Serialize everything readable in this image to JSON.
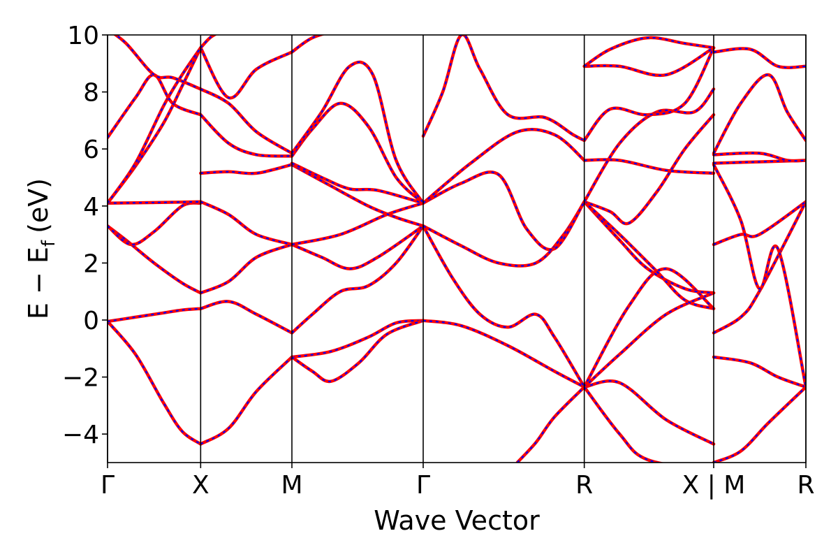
{
  "chart_data": {
    "type": "line",
    "title": "",
    "xlabel": "Wave Vector",
    "ylabel": "E − E",
    "ylabel_subscript": "f",
    "ylabel_unit": "(eV)",
    "ylim": [
      -5,
      10
    ],
    "yticks": [
      -4,
      -2,
      0,
      2,
      4,
      6,
      8,
      10
    ],
    "ytick_labels": [
      "−4",
      "−2",
      "0",
      "2",
      "4",
      "6",
      "8",
      "10"
    ],
    "xlim": [
      0,
      7.5
    ],
    "kpoints": [
      {
        "x": 0.0,
        "label": "Γ"
      },
      {
        "x": 1.0,
        "label": "X"
      },
      {
        "x": 1.98,
        "label": "M"
      },
      {
        "x": 3.39,
        "label": "Γ"
      },
      {
        "x": 5.12,
        "label": "R"
      },
      {
        "x": 6.51,
        "label": "X | M"
      },
      {
        "x": 7.5,
        "label": "R"
      }
    ],
    "segment_breaks": [
      6.51
    ],
    "grid": false,
    "line_styles": {
      "red": "#ff0000",
      "blue": "#0000ff",
      "blue_style": "dashed overlay on red"
    },
    "bands": [
      {
        "segment": 0,
        "x": [
          0.0,
          0.3,
          0.6,
          0.8,
          1.0
        ],
        "y": [
          -0.05,
          -1.2,
          -2.9,
          -3.9,
          -4.35
        ]
      },
      {
        "segment": 0,
        "x": [
          0.0,
          0.3,
          0.6,
          0.8,
          1.0
        ],
        "y": [
          -0.05,
          0.1,
          0.25,
          0.35,
          0.4
        ]
      },
      {
        "segment": 0,
        "x": [
          0.0,
          0.2,
          0.5,
          0.8,
          1.0
        ],
        "y": [
          3.3,
          2.8,
          2.0,
          1.3,
          0.95
        ]
      },
      {
        "segment": 0,
        "x": [
          0.0,
          0.25,
          0.5,
          0.8,
          1.0
        ],
        "y": [
          3.3,
          2.65,
          3.1,
          4.0,
          4.1
        ]
      },
      {
        "segment": 0,
        "x": [
          0.0,
          0.5,
          1.0
        ],
        "y": [
          4.1,
          4.12,
          4.15
        ]
      },
      {
        "segment": 0,
        "x": [
          0.0,
          0.3,
          0.6,
          0.8,
          1.0
        ],
        "y": [
          4.1,
          5.4,
          6.9,
          8.2,
          9.55
        ]
      },
      {
        "segment": 0,
        "x": [
          0.0,
          0.3,
          0.6,
          0.8,
          1.0
        ],
        "y": [
          4.1,
          5.5,
          7.5,
          8.6,
          9.55
        ]
      },
      {
        "segment": 0,
        "x": [
          0.0,
          0.3,
          0.5,
          0.7,
          1.0
        ],
        "y": [
          6.4,
          7.8,
          8.6,
          7.6,
          7.2
        ]
      },
      {
        "segment": 0,
        "x": [
          0.0,
          0.2,
          0.5,
          0.7,
          1.0
        ],
        "y": [
          10.2,
          9.7,
          8.6,
          8.5,
          8.1
        ]
      },
      {
        "segment": 0,
        "x": [
          1.0,
          1.3,
          1.6,
          1.98
        ],
        "y": [
          -4.35,
          -3.8,
          -2.5,
          -1.3
        ]
      },
      {
        "segment": 0,
        "x": [
          1.0,
          1.3,
          1.6,
          1.98
        ],
        "y": [
          0.4,
          0.65,
          0.2,
          -0.45
        ]
      },
      {
        "segment": 0,
        "x": [
          1.0,
          1.3,
          1.6,
          1.98
        ],
        "y": [
          0.95,
          1.35,
          2.2,
          2.65
        ]
      },
      {
        "segment": 0,
        "x": [
          1.0,
          1.3,
          1.6,
          1.98
        ],
        "y": [
          4.15,
          3.7,
          3.0,
          2.65
        ]
      },
      {
        "segment": 0,
        "x": [
          1.0,
          1.3,
          1.6,
          1.98
        ],
        "y": [
          5.15,
          5.2,
          5.15,
          5.45
        ]
      },
      {
        "segment": 0,
        "x": [
          1.0,
          1.3,
          1.6,
          1.98
        ],
        "y": [
          7.2,
          6.2,
          5.8,
          5.75
        ]
      },
      {
        "segment": 0,
        "x": [
          1.0,
          1.3,
          1.6,
          1.98
        ],
        "y": [
          8.1,
          7.6,
          6.6,
          5.85
        ]
      },
      {
        "segment": 0,
        "x": [
          1.0,
          1.3,
          1.6,
          1.98
        ],
        "y": [
          9.55,
          7.8,
          8.8,
          9.4
        ]
      },
      {
        "segment": 0,
        "x": [
          1.0,
          1.1,
          1.2
        ],
        "y": [
          9.55,
          9.9,
          10.1
        ]
      },
      {
        "segment": 0,
        "x": [
          1.98,
          2.4,
          2.8,
          3.1,
          3.39
        ],
        "y": [
          -1.3,
          -1.1,
          -0.6,
          -0.1,
          -0.02
        ]
      },
      {
        "segment": 0,
        "x": [
          1.98,
          2.2,
          2.4,
          2.7,
          3.0,
          3.39
        ],
        "y": [
          -1.3,
          -1.8,
          -2.15,
          -1.5,
          -0.5,
          -0.02
        ]
      },
      {
        "segment": 0,
        "x": [
          1.98,
          2.2,
          2.5,
          2.8,
          3.1,
          3.39
        ],
        "y": [
          -0.45,
          0.2,
          1.0,
          1.2,
          2.0,
          3.3
        ]
      },
      {
        "segment": 0,
        "x": [
          1.98,
          2.3,
          2.6,
          2.9,
          3.39
        ],
        "y": [
          2.65,
          2.2,
          1.8,
          2.2,
          3.3
        ]
      },
      {
        "segment": 0,
        "x": [
          1.98,
          2.5,
          3.0,
          3.39
        ],
        "y": [
          2.65,
          3.0,
          3.7,
          4.1
        ]
      },
      {
        "segment": 0,
        "x": [
          1.98,
          2.4,
          2.8,
          3.1,
          3.39
        ],
        "y": [
          5.45,
          4.7,
          4.0,
          3.6,
          3.3
        ]
      },
      {
        "segment": 0,
        "x": [
          1.98,
          2.3,
          2.6,
          2.9,
          3.39
        ],
        "y": [
          5.5,
          5.0,
          4.6,
          4.55,
          4.1
        ]
      },
      {
        "segment": 0,
        "x": [
          1.98,
          2.2,
          2.5,
          2.8,
          3.1,
          3.39
        ],
        "y": [
          5.75,
          6.7,
          7.6,
          6.8,
          5.0,
          4.1
        ]
      },
      {
        "segment": 0,
        "x": [
          1.98,
          2.3,
          2.6,
          2.85,
          3.1,
          3.39
        ],
        "y": [
          5.85,
          7.3,
          8.9,
          8.6,
          5.6,
          4.1
        ]
      },
      {
        "segment": 0,
        "x": [
          1.98,
          2.2,
          2.5
        ],
        "y": [
          9.4,
          9.9,
          10.2
        ]
      },
      {
        "segment": 0,
        "x": [
          3.39,
          3.8,
          4.3,
          4.8,
          5.12
        ],
        "y": [
          -0.02,
          -0.2,
          -0.9,
          -1.8,
          -2.35
        ]
      },
      {
        "segment": 0,
        "x": [
          3.39,
          3.7,
          4.0,
          4.3,
          4.6,
          4.8,
          5.12
        ],
        "y": [
          3.3,
          1.5,
          0.2,
          -0.25,
          0.2,
          -0.6,
          -2.35
        ]
      },
      {
        "segment": 0,
        "x": [
          3.39,
          3.8,
          4.2,
          4.6,
          4.9,
          5.12
        ],
        "y": [
          3.3,
          2.6,
          2.0,
          2.0,
          3.0,
          4.15
        ]
      },
      {
        "segment": 0,
        "x": [
          3.39,
          3.8,
          4.2,
          4.5,
          4.8,
          5.12
        ],
        "y": [
          4.1,
          4.8,
          5.1,
          3.2,
          2.5,
          4.15
        ]
      },
      {
        "segment": 0,
        "x": [
          3.39,
          3.9,
          4.4,
          4.8,
          5.12
        ],
        "y": [
          4.1,
          5.5,
          6.6,
          6.5,
          5.6
        ]
      },
      {
        "segment": 0,
        "x": [
          3.39,
          3.6,
          3.8,
          4.0,
          4.3,
          4.7,
          5.0,
          5.12
        ],
        "y": [
          6.45,
          8.0,
          10.0,
          8.8,
          7.2,
          7.1,
          6.5,
          6.3
        ]
      },
      {
        "segment": 0,
        "x": [
          4.4,
          4.6,
          4.8,
          5.12
        ],
        "y": [
          -5.0,
          -4.3,
          -3.4,
          -2.35
        ]
      },
      {
        "segment": 0,
        "x": [
          5.12,
          5.5,
          6.0,
          6.51
        ],
        "y": [
          -2.35,
          -2.2,
          -3.5,
          -4.35
        ]
      },
      {
        "segment": 0,
        "x": [
          5.12,
          5.5,
          6.0,
          6.51
        ],
        "y": [
          -2.35,
          -1.2,
          0.2,
          0.95
        ]
      },
      {
        "segment": 0,
        "x": [
          5.12,
          5.6,
          6.0,
          6.51
        ],
        "y": [
          -2.35,
          0.5,
          1.8,
          0.4
        ]
      },
      {
        "segment": 0,
        "x": [
          5.12,
          5.5,
          5.8,
          6.51
        ],
        "y": [
          -2.35,
          -4.0,
          -4.9,
          -5.3
        ]
      },
      {
        "segment": 0,
        "x": [
          5.12,
          5.5,
          5.8,
          6.2,
          6.51
        ],
        "y": [
          4.15,
          2.8,
          1.8,
          1.1,
          0.95
        ]
      },
      {
        "segment": 0,
        "x": [
          5.12,
          5.5,
          5.9,
          6.2,
          6.51
        ],
        "y": [
          4.15,
          3.0,
          1.7,
          0.7,
          0.4
        ]
      },
      {
        "segment": 0,
        "x": [
          5.12,
          5.4,
          5.6,
          5.9,
          6.2,
          6.51
        ],
        "y": [
          4.15,
          3.8,
          3.4,
          4.5,
          6.0,
          7.2
        ]
      },
      {
        "segment": 0,
        "x": [
          5.12,
          5.5,
          6.0,
          6.51
        ],
        "y": [
          5.6,
          5.6,
          5.25,
          5.15
        ]
      },
      {
        "segment": 0,
        "x": [
          5.12,
          5.5,
          5.9,
          6.3,
          6.51
        ],
        "y": [
          4.15,
          6.2,
          7.3,
          7.3,
          8.1
        ]
      },
      {
        "segment": 0,
        "x": [
          5.12,
          5.4,
          5.8,
          6.2,
          6.51
        ],
        "y": [
          6.3,
          7.4,
          7.2,
          7.6,
          9.55
        ]
      },
      {
        "segment": 0,
        "x": [
          5.12,
          5.5,
          6.0,
          6.51
        ],
        "y": [
          8.9,
          8.9,
          8.6,
          9.55
        ]
      },
      {
        "segment": 0,
        "x": [
          5.12,
          5.4,
          5.8,
          6.2,
          6.51
        ],
        "y": [
          8.9,
          9.5,
          9.9,
          9.7,
          9.55
        ]
      },
      {
        "segment": 1,
        "x": [
          6.51,
          6.8,
          7.1,
          7.5
        ],
        "y": [
          -5.0,
          -4.6,
          -3.6,
          -2.35
        ]
      },
      {
        "segment": 1,
        "x": [
          6.51,
          6.9,
          7.2,
          7.5
        ],
        "y": [
          -1.3,
          -1.5,
          -2.0,
          -2.35
        ]
      },
      {
        "segment": 1,
        "x": [
          6.51,
          6.8,
          7.0,
          7.5
        ],
        "y": [
          -0.45,
          0.1,
          1.0,
          4.15
        ]
      },
      {
        "segment": 1,
        "x": [
          6.51,
          6.8,
          7.0,
          7.5
        ],
        "y": [
          2.65,
          3.0,
          3.0,
          4.15
        ]
      },
      {
        "segment": 1,
        "x": [
          6.51,
          6.8,
          7.0,
          7.2,
          7.5
        ],
        "y": [
          5.45,
          3.5,
          1.1,
          2.5,
          -2.35
        ]
      },
      {
        "segment": 1,
        "x": [
          6.51,
          7.0,
          7.5
        ],
        "y": [
          5.5,
          5.55,
          5.6
        ]
      },
      {
        "segment": 1,
        "x": [
          6.51,
          7.0,
          7.3,
          7.5
        ],
        "y": [
          5.8,
          5.85,
          5.6,
          5.6
        ]
      },
      {
        "segment": 1,
        "x": [
          6.51,
          6.8,
          7.1,
          7.3,
          7.5
        ],
        "y": [
          5.85,
          7.6,
          8.6,
          7.3,
          6.3
        ]
      },
      {
        "segment": 1,
        "x": [
          6.51,
          6.9,
          7.2,
          7.5
        ],
        "y": [
          9.4,
          9.5,
          8.9,
          8.9
        ]
      }
    ]
  }
}
